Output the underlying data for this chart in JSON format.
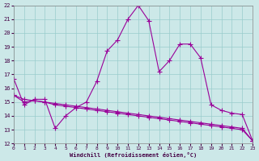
{
  "xlabel": "Windchill (Refroidissement éolien,°C)",
  "xlim": [
    0,
    23
  ],
  "ylim": [
    12,
    22
  ],
  "xticks": [
    0,
    1,
    2,
    3,
    4,
    5,
    6,
    7,
    8,
    9,
    10,
    11,
    12,
    13,
    14,
    15,
    16,
    17,
    18,
    19,
    20,
    21,
    22,
    23
  ],
  "yticks": [
    12,
    13,
    14,
    15,
    16,
    17,
    18,
    19,
    20,
    21,
    22
  ],
  "bg_color": "#cce8e8",
  "grid_color": "#99cccc",
  "line_color": "#990099",
  "lines": [
    {
      "x": [
        0,
        1,
        2,
        3,
        4,
        5,
        6,
        7,
        8,
        9,
        10,
        11,
        12,
        13,
        14,
        15,
        16,
        17,
        18,
        19,
        20,
        21,
        22,
        23
      ],
      "y": [
        16.7,
        14.8,
        15.2,
        15.2,
        13.1,
        14.0,
        14.6,
        15.0,
        16.5,
        18.7,
        19.5,
        21.0,
        22.0,
        20.9,
        17.2,
        18.0,
        19.2,
        19.2,
        18.2,
        14.8,
        14.4,
        14.2,
        14.1,
        12.2
      ]
    },
    {
      "x": [
        0,
        1,
        2,
        3,
        4,
        5,
        6,
        7,
        8,
        9,
        10,
        11,
        12,
        13,
        14,
        15,
        16,
        17,
        18,
        19,
        20,
        21,
        22,
        23
      ],
      "y": [
        15.5,
        15.0,
        15.1,
        15.0,
        14.9,
        14.8,
        14.7,
        14.6,
        14.5,
        14.4,
        14.3,
        14.2,
        14.1,
        14.0,
        13.9,
        13.8,
        13.7,
        13.6,
        13.5,
        13.4,
        13.3,
        13.2,
        13.1,
        12.2
      ]
    },
    {
      "x": [
        0,
        1,
        2,
        3,
        4,
        5,
        6,
        7,
        8,
        9,
        10,
        11,
        12,
        13,
        14,
        15,
        16,
        17,
        18,
        19,
        20,
        21,
        22,
        23
      ],
      "y": [
        15.5,
        15.2,
        15.1,
        15.0,
        14.8,
        14.7,
        14.6,
        14.5,
        14.4,
        14.3,
        14.2,
        14.1,
        14.0,
        13.9,
        13.8,
        13.7,
        13.6,
        13.5,
        13.4,
        13.3,
        13.2,
        13.1,
        13.0,
        12.2
      ]
    }
  ]
}
